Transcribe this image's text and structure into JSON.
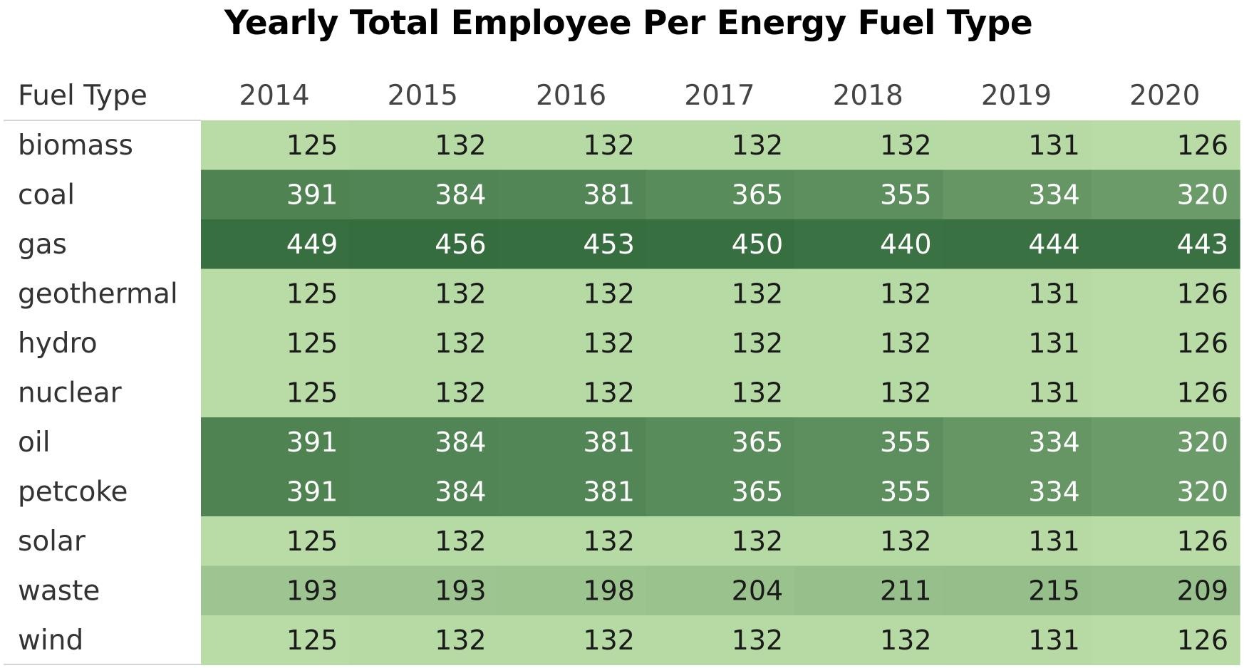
{
  "chart_data": {
    "type": "heatmap",
    "title": "Yearly Total Employee Per Energy Fuel Type",
    "row_header": "Fuel Type",
    "columns": [
      "2014",
      "2015",
      "2016",
      "2017",
      "2018",
      "2019",
      "2020"
    ],
    "rows": [
      "biomass",
      "coal",
      "gas",
      "geothermal",
      "hydro",
      "nuclear",
      "oil",
      "petcoke",
      "solar",
      "waste",
      "wind"
    ],
    "values": [
      [
        125,
        132,
        132,
        132,
        132,
        131,
        126
      ],
      [
        391,
        384,
        381,
        365,
        355,
        334,
        320
      ],
      [
        449,
        456,
        453,
        450,
        440,
        444,
        443
      ],
      [
        125,
        132,
        132,
        132,
        132,
        131,
        126
      ],
      [
        125,
        132,
        132,
        132,
        132,
        131,
        126
      ],
      [
        125,
        132,
        132,
        132,
        132,
        131,
        126
      ],
      [
        391,
        384,
        381,
        365,
        355,
        334,
        320
      ],
      [
        391,
        384,
        381,
        365,
        355,
        334,
        320
      ],
      [
        125,
        132,
        132,
        132,
        132,
        131,
        126
      ],
      [
        193,
        193,
        198,
        204,
        211,
        215,
        209
      ],
      [
        125,
        132,
        132,
        132,
        132,
        131,
        126
      ]
    ],
    "color_scale": {
      "low_color": "#b9dca6",
      "high_color": "#356d3e",
      "low_text_color": "#1a1a1a",
      "high_text_color": "#ffffff"
    },
    "grid": false,
    "legend": "none"
  }
}
